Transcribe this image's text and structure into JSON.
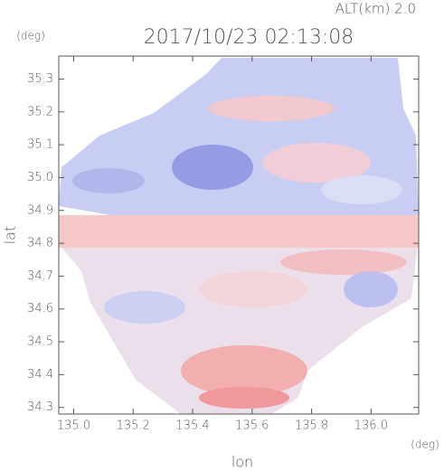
{
  "chart_data": {
    "type": "radar-image",
    "title": "2017/10/23 02:13:08",
    "subtitle": "ALT(km) 2.0",
    "y_unit": "(deg)",
    "x_unit": "(deg)",
    "xlabel": "lon",
    "ylabel": "lat",
    "xlim": [
      134.95,
      136.16
    ],
    "xticks": [
      {
        "value": 135,
        "label": "135.0"
      },
      135.2,
      135.4,
      135.6,
      135.8,
      {
        "value": 136,
        "label": "136.0"
      }
    ],
    "ylim": [
      34.28,
      35.37
    ],
    "yticks": [
      35.3,
      35.2,
      35.1,
      {
        "value": 35,
        "label": "35.0"
      },
      34.9,
      34.8,
      34.7,
      34.6,
      34.5,
      34.4,
      34.3
    ]
  }
}
